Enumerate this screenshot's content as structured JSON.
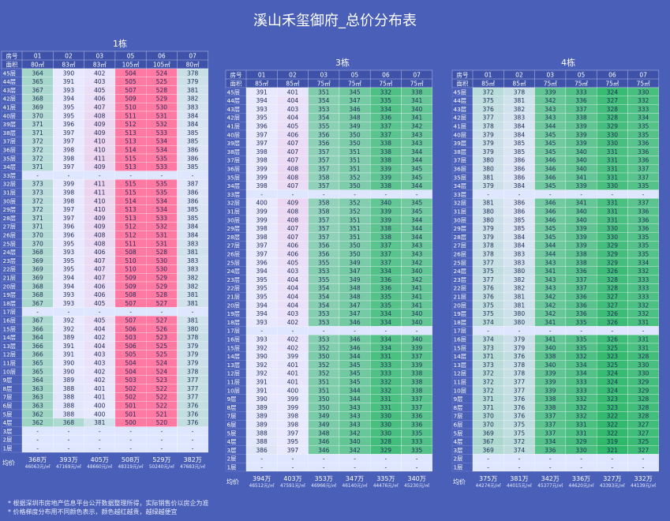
{
  "title": "溪山禾玺御府_总价分布表",
  "colors": {
    "background": "#4a5fb8",
    "low": "#2db86a",
    "mid": "#e8e8ff",
    "high": "#ff79a3"
  },
  "labels": {
    "unit": "房号",
    "area": "面积",
    "avg": "均价"
  },
  "notes": [
    "* 根据深圳市房地产信息平台公开数据整理所得，实际销售价以房企为准",
    "* 价格梯度分布用不同颜色表示，颜色越红越贵，越绿越便宜"
  ],
  "floors": [
    "45层",
    "44层",
    "43层",
    "42层",
    "41层",
    "40层",
    "39层",
    "38层",
    "37层",
    "36层",
    "35层",
    "34层",
    "33层",
    "32层",
    "31层",
    "30层",
    "29层",
    "28层",
    "27层",
    "26层",
    "25层",
    "24层",
    "23层",
    "22层",
    "21层",
    "20层",
    "19层",
    "18层",
    "17层",
    "16层",
    "15层",
    "14层",
    "13层",
    "12层",
    "11层",
    "10层",
    "9层",
    "8层",
    "7层",
    "6层",
    "5层",
    "4层",
    "3层",
    "2层",
    "1层"
  ],
  "chart_data": [
    {
      "type": "table",
      "building": "1栋",
      "units": [
        "01",
        "02",
        "03",
        "05",
        "06",
        "07"
      ],
      "areas": [
        "80㎡",
        "83㎡",
        "83㎡",
        "105㎡",
        "105㎡",
        "80㎡"
      ],
      "rows": [
        [
          "364",
          "390",
          "402",
          "504",
          "524",
          "378"
        ],
        [
          "365",
          "391",
          "403",
          "505",
          "525",
          "379"
        ],
        [
          "367",
          "393",
          "405",
          "507",
          "528",
          "381"
        ],
        [
          "368",
          "394",
          "406",
          "509",
          "529",
          "382"
        ],
        [
          "369",
          "395",
          "407",
          "510",
          "530",
          "383"
        ],
        [
          "370",
          "395",
          "408",
          "511",
          "531",
          "384"
        ],
        [
          "371",
          "396",
          "409",
          "512",
          "532",
          "384"
        ],
        [
          "371",
          "397",
          "409",
          "513",
          "533",
          "385"
        ],
        [
          "372",
          "397",
          "410",
          "513",
          "534",
          "385"
        ],
        [
          "372",
          "398",
          "410",
          "514",
          "534",
          "386"
        ],
        [
          "372",
          "398",
          "411",
          "515",
          "535",
          "386"
        ],
        [
          "371",
          "397",
          "409",
          "513",
          "533",
          "385"
        ],
        [
          "-",
          "-",
          "-",
          "-",
          "-",
          "-"
        ],
        [
          "373",
          "399",
          "411",
          "515",
          "535",
          "387"
        ],
        [
          "373",
          "398",
          "411",
          "515",
          "535",
          "386"
        ],
        [
          "372",
          "398",
          "410",
          "514",
          "534",
          "386"
        ],
        [
          "372",
          "397",
          "410",
          "513",
          "534",
          "385"
        ],
        [
          "371",
          "397",
          "409",
          "513",
          "533",
          "385"
        ],
        [
          "371",
          "396",
          "409",
          "512",
          "532",
          "384"
        ],
        [
          "370",
          "396",
          "408",
          "512",
          "531",
          "384"
        ],
        [
          "370",
          "395",
          "408",
          "511",
          "531",
          "383"
        ],
        [
          "368",
          "393",
          "406",
          "508",
          "528",
          "381"
        ],
        [
          "369",
          "395",
          "407",
          "510",
          "530",
          "383"
        ],
        [
          "369",
          "395",
          "407",
          "510",
          "530",
          "383"
        ],
        [
          "369",
          "394",
          "407",
          "509",
          "529",
          "382"
        ],
        [
          "368",
          "394",
          "406",
          "509",
          "529",
          "382"
        ],
        [
          "368",
          "393",
          "406",
          "508",
          "528",
          "381"
        ],
        [
          "367",
          "393",
          "405",
          "507",
          "527",
          "381"
        ],
        [
          "-",
          "-",
          "-",
          "-",
          "-",
          "-"
        ],
        [
          "367",
          "392",
          "405",
          "507",
          "527",
          "381"
        ],
        [
          "366",
          "392",
          "404",
          "506",
          "526",
          "380"
        ],
        [
          "364",
          "389",
          "402",
          "503",
          "523",
          "378"
        ],
        [
          "366",
          "391",
          "404",
          "506",
          "525",
          "379"
        ],
        [
          "366",
          "391",
          "403",
          "505",
          "525",
          "379"
        ],
        [
          "365",
          "390",
          "403",
          "504",
          "524",
          "379"
        ],
        [
          "365",
          "390",
          "402",
          "504",
          "524",
          "378"
        ],
        [
          "364",
          "389",
          "402",
          "503",
          "523",
          "377"
        ],
        [
          "363",
          "388",
          "401",
          "502",
          "522",
          "377"
        ],
        [
          "363",
          "388",
          "401",
          "502",
          "522",
          "377"
        ],
        [
          "363",
          "388",
          "400",
          "501",
          "522",
          "376"
        ],
        [
          "362",
          "388",
          "400",
          "501",
          "521",
          "376"
        ],
        [
          "362",
          "368",
          "381",
          "500",
          "520",
          "376"
        ],
        [
          "-",
          "-",
          "-",
          "-",
          "-",
          "-"
        ],
        [
          "-",
          "-",
          "-",
          "-",
          "-",
          "-"
        ],
        [
          "-",
          "-",
          "-",
          "-",
          "-",
          "-"
        ]
      ],
      "avg_total": [
        "368万",
        "393万",
        "405万",
        "508万",
        "529万",
        "382万"
      ],
      "avg_unit": [
        "46063元/㎡",
        "47169元/㎡",
        "48660元/㎡",
        "48319元/㎡",
        "50240元/㎡",
        "47683元/㎡"
      ]
    },
    {
      "type": "table",
      "building": "3栋",
      "units": [
        "01",
        "02",
        "03",
        "05",
        "06",
        "07"
      ],
      "areas": [
        "85㎡",
        "85㎡",
        "75㎡",
        "75㎡",
        "75㎡",
        "75㎡"
      ],
      "rows": [
        [
          "391",
          "401",
          "351",
          "345",
          "332",
          "338"
        ],
        [
          "394",
          "404",
          "354",
          "347",
          "335",
          "341"
        ],
        [
          "393",
          "403",
          "353",
          "346",
          "334",
          "340"
        ],
        [
          "395",
          "404",
          "354",
          "348",
          "336",
          "341"
        ],
        [
          "396",
          "405",
          "355",
          "349",
          "337",
          "342"
        ],
        [
          "397",
          "406",
          "356",
          "350",
          "337",
          "343"
        ],
        [
          "397",
          "407",
          "356",
          "350",
          "338",
          "343"
        ],
        [
          "398",
          "407",
          "357",
          "351",
          "338",
          "344"
        ],
        [
          "398",
          "407",
          "357",
          "351",
          "338",
          "344"
        ],
        [
          "399",
          "408",
          "357",
          "351",
          "339",
          "345"
        ],
        [
          "399",
          "408",
          "358",
          "352",
          "339",
          "345"
        ],
        [
          "398",
          "407",
          "357",
          "350",
          "338",
          "344"
        ],
        [
          "-",
          "-",
          "-",
          "-",
          "-",
          "-"
        ],
        [
          "400",
          "409",
          "358",
          "352",
          "340",
          "345"
        ],
        [
          "399",
          "408",
          "358",
          "352",
          "339",
          "345"
        ],
        [
          "399",
          "408",
          "357",
          "351",
          "339",
          "344"
        ],
        [
          "398",
          "407",
          "357",
          "351",
          "338",
          "344"
        ],
        [
          "398",
          "407",
          "357",
          "351",
          "338",
          "344"
        ],
        [
          "397",
          "406",
          "356",
          "350",
          "337",
          "343"
        ],
        [
          "397",
          "406",
          "356",
          "350",
          "337",
          "343"
        ],
        [
          "396",
          "405",
          "355",
          "349",
          "337",
          "342"
        ],
        [
          "394",
          "403",
          "353",
          "347",
          "334",
          "340"
        ],
        [
          "395",
          "404",
          "355",
          "349",
          "336",
          "342"
        ],
        [
          "395",
          "404",
          "354",
          "348",
          "336",
          "341"
        ],
        [
          "395",
          "404",
          "354",
          "348",
          "335",
          "341"
        ],
        [
          "394",
          "404",
          "354",
          "347",
          "335",
          "341"
        ],
        [
          "394",
          "403",
          "353",
          "347",
          "334",
          "340"
        ],
        [
          "393",
          "402",
          "353",
          "346",
          "334",
          "340"
        ],
        [
          "-",
          "-",
          "-",
          "-",
          "-",
          "-"
        ],
        [
          "393",
          "402",
          "353",
          "346",
          "334",
          "340"
        ],
        [
          "392",
          "402",
          "352",
          "346",
          "334",
          "339"
        ],
        [
          "390",
          "399",
          "350",
          "344",
          "331",
          "337"
        ],
        [
          "392",
          "401",
          "352",
          "345",
          "333",
          "339"
        ],
        [
          "392",
          "401",
          "352",
          "345",
          "333",
          "338"
        ],
        [
          "391",
          "401",
          "351",
          "345",
          "332",
          "338"
        ],
        [
          "391",
          "400",
          "351",
          "344",
          "332",
          "338"
        ],
        [
          "390",
          "399",
          "350",
          "344",
          "331",
          "337"
        ],
        [
          "389",
          "399",
          "350",
          "343",
          "331",
          "337"
        ],
        [
          "389",
          "398",
          "349",
          "343",
          "330",
          "336"
        ],
        [
          "389",
          "398",
          "349",
          "343",
          "330",
          "336"
        ],
        [
          "388",
          "397",
          "348",
          "342",
          "330",
          "335"
        ],
        [
          "388",
          "395",
          "346",
          "340",
          "328",
          "333"
        ],
        [
          "386",
          "397",
          "346",
          "342",
          "329",
          "335"
        ],
        [
          "-",
          "-",
          "-",
          "-",
          "-",
          "-"
        ],
        [
          "-",
          "-",
          "-",
          "-",
          "-",
          "-"
        ]
      ],
      "avg_total": [
        "394万",
        "403万",
        "353万",
        "347万",
        "335万",
        "340万"
      ],
      "avg_unit": [
        "46512元/㎡",
        "47591元/㎡",
        "46966元/㎡",
        "46140元/㎡",
        "44476元/㎡",
        "45230元/㎡"
      ]
    },
    {
      "type": "table",
      "building": "4栋",
      "units": [
        "01",
        "02",
        "03",
        "05",
        "06",
        "07"
      ],
      "areas": [
        "85㎡",
        "85㎡",
        "75㎡",
        "75㎡",
        "75㎡",
        "75㎡"
      ],
      "rows": [
        [
          "372",
          "378",
          "339",
          "333",
          "324",
          "330"
        ],
        [
          "375",
          "381",
          "342",
          "336",
          "327",
          "332"
        ],
        [
          "376",
          "382",
          "343",
          "337",
          "328",
          "333"
        ],
        [
          "377",
          "383",
          "343",
          "338",
          "328",
          "334"
        ],
        [
          "378",
          "384",
          "344",
          "339",
          "329",
          "335"
        ],
        [
          "379",
          "384",
          "345",
          "339",
          "330",
          "335"
        ],
        [
          "379",
          "385",
          "345",
          "339",
          "330",
          "336"
        ],
        [
          "379",
          "385",
          "345",
          "340",
          "331",
          "336"
        ],
        [
          "380",
          "386",
          "346",
          "340",
          "331",
          "336"
        ],
        [
          "380",
          "386",
          "346",
          "340",
          "331",
          "337"
        ],
        [
          "381",
          "386",
          "346",
          "341",
          "331",
          "337"
        ],
        [
          "379",
          "384",
          "345",
          "339",
          "330",
          "335"
        ],
        [
          "-",
          "-",
          "-",
          "-",
          "-",
          "-"
        ],
        [
          "381",
          "386",
          "346",
          "341",
          "331",
          "337"
        ],
        [
          "380",
          "386",
          "346",
          "340",
          "331",
          "336"
        ],
        [
          "380",
          "385",
          "346",
          "340",
          "331",
          "336"
        ],
        [
          "379",
          "385",
          "345",
          "339",
          "330",
          "336"
        ],
        [
          "379",
          "384",
          "345",
          "339",
          "330",
          "335"
        ],
        [
          "378",
          "384",
          "344",
          "339",
          "329",
          "335"
        ],
        [
          "378",
          "383",
          "344",
          "338",
          "329",
          "335"
        ],
        [
          "377",
          "383",
          "343",
          "338",
          "329",
          "334"
        ],
        [
          "375",
          "380",
          "341",
          "336",
          "326",
          "332"
        ],
        [
          "377",
          "382",
          "343",
          "337",
          "328",
          "333"
        ],
        [
          "376",
          "382",
          "343",
          "337",
          "328",
          "333"
        ],
        [
          "376",
          "381",
          "342",
          "336",
          "327",
          "333"
        ],
        [
          "375",
          "381",
          "342",
          "336",
          "327",
          "332"
        ],
        [
          "375",
          "380",
          "342",
          "336",
          "326",
          "332"
        ],
        [
          "374",
          "380",
          "341",
          "335",
          "326",
          "331"
        ],
        [
          "-",
          "-",
          "-",
          "-",
          "-",
          "-"
        ],
        [
          "374",
          "379",
          "341",
          "335",
          "326",
          "331"
        ],
        [
          "373",
          "379",
          "340",
          "335",
          "325",
          "331"
        ],
        [
          "371",
          "376",
          "338",
          "332",
          "323",
          "328"
        ],
        [
          "373",
          "378",
          "340",
          "334",
          "325",
          "330"
        ],
        [
          "372",
          "378",
          "339",
          "334",
          "324",
          "330"
        ],
        [
          "372",
          "377",
          "339",
          "333",
          "324",
          "329"
        ],
        [
          "372",
          "377",
          "339",
          "333",
          "324",
          "329"
        ],
        [
          "371",
          "376",
          "338",
          "332",
          "323",
          "328"
        ],
        [
          "371",
          "376",
          "338",
          "332",
          "323",
          "328"
        ],
        [
          "370",
          "376",
          "337",
          "332",
          "322",
          "328"
        ],
        [
          "370",
          "375",
          "337",
          "331",
          "322",
          "327"
        ],
        [
          "369",
          "375",
          "337",
          "331",
          "322",
          "327"
        ],
        [
          "367",
          "372",
          "334",
          "329",
          "319",
          "325"
        ],
        [
          "369",
          "374",
          "336",
          "330",
          "321",
          "327"
        ],
        [
          "-",
          "-",
          "-",
          "-",
          "-",
          "-"
        ],
        [
          "-",
          "-",
          "-",
          "-",
          "-",
          "-"
        ]
      ],
      "avg_total": [
        "375万",
        "381万",
        "342万",
        "336万",
        "327万",
        "332万"
      ],
      "avg_unit": [
        "44274元/㎡",
        "44015元/㎡",
        "45377元/㎡",
        "44620元/㎡",
        "43393元/㎡",
        "44139元/㎡"
      ]
    }
  ]
}
